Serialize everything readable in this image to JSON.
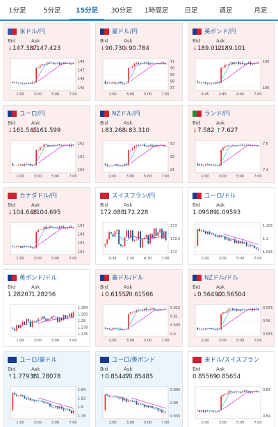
{
  "tabs": [
    {
      "label": "1分足",
      "active": false
    },
    {
      "label": "5分足",
      "active": false
    },
    {
      "label": "15分足",
      "active": true
    },
    {
      "label": "30分足",
      "active": false
    },
    {
      "label": "1時間足",
      "active": false
    },
    {
      "label": "日足",
      "active": false
    },
    {
      "label": "週足",
      "active": false
    },
    {
      "label": "月足",
      "active": false
    }
  ],
  "labels": {
    "bid": "Bid",
    "ask": "Ask"
  },
  "colors": {
    "up": "#e03030",
    "down": "#1a3f8f",
    "ma_fast": "#4aa8d8",
    "ma_slow": "#cc33cc",
    "pink_bg": "#fdeeee",
    "blue_bg": "#edf5fc",
    "white_bg": "#ffffff"
  },
  "pairs": [
    {
      "name": "米ドル/円",
      "flag": [
        "#3355aa",
        "#cc2233"
      ],
      "bid": "147.387",
      "ask": "147.423",
      "bid_dir": "down",
      "ask_dir": "down",
      "bg": "pink",
      "chart_data": {
        "type": "candlestick",
        "x_ticks": [
          "1:00",
          "3:00",
          "5:00",
          "7:00"
        ],
        "y_ticks": [
          "148",
          "147",
          "146",
          "145"
        ],
        "ylim": [
          144.5,
          148.3
        ],
        "shape": "jump"
      }
    },
    {
      "name": "豪ドル/円",
      "flag": [
        "#1a3a8f",
        "#cc2233"
      ],
      "bid": "90.730",
      "ask": "90.784",
      "bid_dir": "down",
      "ask_dir": "down",
      "bg": "pink",
      "chart_data": {
        "type": "candlestick",
        "x_ticks": [
          "1:00",
          "3:00",
          "5:00",
          "7:00"
        ],
        "y_ticks": [
          "91",
          "90",
          "89",
          "88",
          "87"
        ],
        "ylim": [
          86.5,
          91.3
        ],
        "shape": "jump"
      }
    },
    {
      "name": "英ポンド/円",
      "flag": [
        "#1a3a8f",
        "#cc2233"
      ],
      "bid": "189.012",
      "ask": "189.101",
      "bid_dir": "down",
      "ask_dir": "down",
      "bg": "pink",
      "chart_data": {
        "type": "candlestick",
        "x_ticks": [
          "0:45",
          "2:45",
          "4:45",
          "7:00"
        ],
        "y_ticks": [
          "188",
          "186"
        ],
        "ylim": [
          185,
          189.5
        ],
        "shape": "jump"
      }
    },
    {
      "name": "ユーロ/円",
      "flag": [
        "#1a3a8f",
        "#cc2233"
      ],
      "bid": "161.545",
      "ask": "161.599",
      "bid_dir": "down",
      "ask_dir": "down",
      "bg": "pink",
      "chart_data": {
        "type": "candlestick",
        "x_ticks": [
          "1:00",
          "3:00",
          "5:00",
          "7:00"
        ],
        "y_ticks": [
          "162",
          "161",
          "160"
        ],
        "ylim": [
          159.3,
          162.3
        ],
        "shape": "jump"
      }
    },
    {
      "name": "NZドル/円",
      "flag": [
        "#1a3a8f",
        "#cc2233"
      ],
      "bid": "83.268",
      "ask": "83.310",
      "bid_dir": "down",
      "ask_dir": "down",
      "bg": "pink",
      "chart_data": {
        "type": "candlestick",
        "x_ticks": [
          "1:00",
          "3:00",
          "5:00",
          "7:00"
        ],
        "y_ticks": [
          "83",
          "82",
          "81"
        ],
        "ylim": [
          80.3,
          83.6
        ],
        "shape": "jump"
      }
    },
    {
      "name": "ランド/円",
      "flag": [
        "#2a8a3a",
        "#cc2233"
      ],
      "bid": "7.582",
      "ask": "7.627",
      "bid_dir": "down",
      "ask_dir": "up",
      "bg": "pink",
      "chart_data": {
        "type": "candlestick",
        "x_ticks": [
          "1:00",
          "3:00",
          "5:00",
          "7:00"
        ],
        "y_ticks": [
          "7.6",
          "7.4"
        ],
        "ylim": [
          7.3,
          7.7
        ],
        "shape": "jump"
      }
    },
    {
      "name": "カナダドル/円",
      "flag": [
        "#cc2233",
        "#cc2233"
      ],
      "bid": "104.648",
      "ask": "104.695",
      "bid_dir": "down",
      "ask_dir": "down",
      "bg": "pink",
      "chart_data": {
        "type": "candlestick",
        "x_ticks": [
          "1:00",
          "3:00",
          "5:00",
          "7:00"
        ],
        "y_ticks": [
          "105",
          "104",
          "103",
          "102"
        ],
        "ylim": [
          101.5,
          105.3
        ],
        "shape": "jump"
      }
    },
    {
      "name": "スイスフラン/円",
      "flag": [
        "#cc2233",
        "#cc2233"
      ],
      "bid": "172.088",
      "ask": "172.228",
      "bid_dir": "none",
      "ask_dir": "none",
      "bg": "white",
      "chart_data": {
        "type": "candlestick",
        "x_ticks": [
          "0:30",
          "2:30",
          "4:30",
          "7:00"
        ],
        "y_ticks": [
          "173",
          "172.5",
          "172"
        ],
        "ylim": [
          171.6,
          173.3
        ],
        "shape": "volatile"
      }
    },
    {
      "name": "ユーロ/ドル",
      "flag": [
        "#1a3a8f",
        "#cc2233"
      ],
      "bid": "1.09589",
      "ask": "1.09593",
      "bid_dir": "none",
      "ask_dir": "none",
      "bg": "white",
      "chart_data": {
        "type": "candlestick",
        "x_ticks": [
          "1:00",
          "3:00",
          "5:00",
          "7:00"
        ],
        "y_ticks": [
          "1.105",
          "1.1",
          "1.095"
        ],
        "ylim": [
          1.092,
          1.108
        ],
        "shape": "drop"
      }
    },
    {
      "name": "英ポンド/ドル",
      "flag": [
        "#1a3a8f",
        "#cc2233"
      ],
      "bid": "1.28207",
      "ask": "1.28256",
      "bid_dir": "none",
      "ask_dir": "none",
      "bg": "white",
      "chart_data": {
        "type": "candlestick",
        "x_ticks": [
          "1:00",
          "3:00",
          "5:00",
          "7:00"
        ],
        "y_ticks": [
          "1.284",
          "1.282",
          "1.28",
          "1.278",
          "1.276"
        ],
        "ylim": [
          1.2745,
          1.2855
        ],
        "shape": "mixed"
      }
    },
    {
      "name": "豪ドル/ドル",
      "flag": [
        "#1a3a8f",
        "#cc2233"
      ],
      "bid": "0.61557",
      "ask": "0.61566",
      "bid_dir": "down",
      "ask_dir": "down",
      "bg": "pink",
      "chart_data": {
        "type": "candlestick",
        "x_ticks": [
          "1:00",
          "3:00",
          "5:00",
          "7:00"
        ],
        "y_ticks": [
          "0.615",
          "0.61",
          "0.605",
          "0.6"
        ],
        "ylim": [
          0.598,
          0.617
        ],
        "shape": "jump"
      }
    },
    {
      "name": "NZドル/ドル",
      "flag": [
        "#1a3a8f",
        "#cc2233"
      ],
      "bid": "0.56490",
      "ask": "0.56504",
      "bid_dir": "down",
      "ask_dir": "down",
      "bg": "pink",
      "chart_data": {
        "type": "candlestick",
        "x_ticks": [
          "1:00",
          "3:00",
          "5:00",
          "7:00"
        ],
        "y_ticks": [
          "0.565",
          "0.56",
          "0.555"
        ],
        "ylim": [
          0.553,
          0.567
        ],
        "shape": "jump"
      }
    },
    {
      "name": "ユーロ/豪ドル",
      "flag": [
        "#1a3a8f",
        "#1a3a8f"
      ],
      "bid": "1.77938",
      "ask": "1.78078",
      "bid_dir": "up",
      "ask_dir": "up",
      "bg": "blue",
      "chart_data": {
        "type": "candlestick",
        "x_ticks": [
          "1:00",
          "3:00",
          "5:00",
          "7:00"
        ],
        "y_ticks": [
          "1.84",
          "1.82",
          "1.8",
          "1.78"
        ],
        "ylim": [
          1.775,
          1.845
        ],
        "shape": "drop"
      }
    },
    {
      "name": "ユーロ/英ポンド",
      "flag": [
        "#1a3a8f",
        "#1a3a8f"
      ],
      "bid": "0.85447",
      "ask": "0.85485",
      "bid_dir": "up",
      "ask_dir": "up",
      "bg": "blue",
      "chart_data": {
        "type": "candlestick",
        "x_ticks": [
          "1:00",
          "3:00",
          "5:00",
          "7:00"
        ],
        "y_ticks": [
          "0.865",
          "0.86",
          "0.855"
        ],
        "ylim": [
          0.8525,
          0.8665
        ],
        "shape": "drop"
      }
    },
    {
      "name": "米ドル/スイスフラン",
      "flag": [
        "#cc2233",
        "#cc2233"
      ],
      "bid": "0.85569",
      "ask": "0.85654",
      "bid_dir": "none",
      "ask_dir": "none",
      "bg": "white",
      "chart_data": {
        "type": "candlestick",
        "x_ticks": [
          "1:00",
          "3:00",
          "5:00",
          "7:00"
        ],
        "y_ticks": [
          "0.85",
          "0.84"
        ],
        "ylim": [
          0.836,
          0.858
        ],
        "shape": "jump"
      }
    }
  ]
}
